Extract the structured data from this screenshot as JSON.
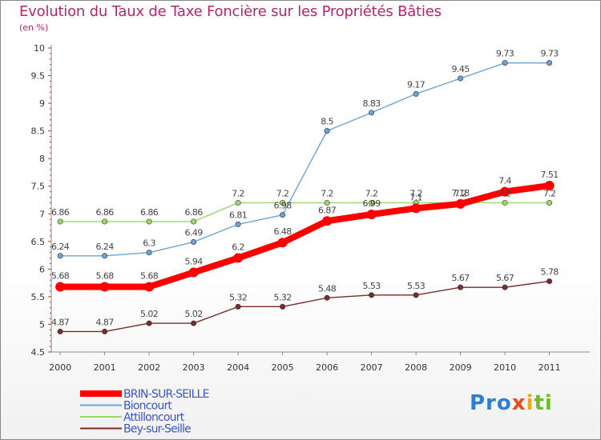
{
  "title": "Evolution du Taux de Taxe Foncière sur les Propriétés Bâties",
  "subtitle": "(en %)",
  "logo": {
    "parts": [
      "Pro",
      "x",
      "i",
      "ti"
    ]
  },
  "chart_data": {
    "type": "line",
    "x": [
      "2000",
      "2001",
      "2002",
      "2003",
      "2004",
      "2005",
      "2006",
      "2007",
      "2008",
      "2009",
      "2010",
      "2011"
    ],
    "ylim": [
      4.5,
      10
    ],
    "yticks": [
      "4.5",
      "5",
      "5.5",
      "6",
      "6.5",
      "7",
      "7.5",
      "8",
      "8.5",
      "9",
      "9.5",
      "10"
    ],
    "grid": false,
    "legend_position": "bottom-left",
    "series": [
      {
        "name": "BRIN-SUR-SEILLE",
        "color": "#ff0000",
        "labels": [
          "5.68",
          "5.68",
          "5.68",
          "5.94",
          "6.2",
          "6.48",
          "6.87",
          "6.99",
          "7.1",
          "7.18",
          "7.4",
          "7.51"
        ],
        "values": [
          5.68,
          5.68,
          5.68,
          5.94,
          6.2,
          6.48,
          6.87,
          6.99,
          7.1,
          7.18,
          7.4,
          7.51
        ]
      },
      {
        "name": "Bioncourt",
        "color": "#6ba4d8",
        "labels": [
          "6.24",
          "6.24",
          "6.3",
          "6.49",
          "6.81",
          "6.98",
          "8.5",
          "8.83",
          "9.17",
          "9.45",
          "9.73",
          "9.73"
        ],
        "values": [
          6.24,
          6.24,
          6.3,
          6.49,
          6.81,
          6.98,
          8.5,
          8.83,
          9.17,
          9.45,
          9.73,
          9.73
        ]
      },
      {
        "name": "Attilloncourt",
        "color": "#9ad86a",
        "labels": [
          "6.86",
          "6.86",
          "6.86",
          "6.86",
          "7.2",
          "7.2",
          "7.2",
          "7.2",
          "7.2",
          "7.2",
          "7.2",
          "7.2"
        ],
        "values": [
          6.86,
          6.86,
          6.86,
          6.86,
          7.2,
          7.2,
          7.2,
          7.2,
          7.2,
          7.2,
          7.2,
          7.2
        ]
      },
      {
        "name": "Bey-sur-Seille",
        "color": "#7a2a2a",
        "labels": [
          "4.87",
          "4.87",
          "5.02",
          "5.02",
          "5.32",
          "5.32",
          "5.48",
          "5.53",
          "5.53",
          "5.67",
          "5.67",
          "5.78"
        ],
        "values": [
          4.87,
          4.87,
          5.02,
          5.02,
          5.32,
          5.32,
          5.48,
          5.53,
          5.53,
          5.67,
          5.67,
          5.78
        ]
      }
    ]
  }
}
